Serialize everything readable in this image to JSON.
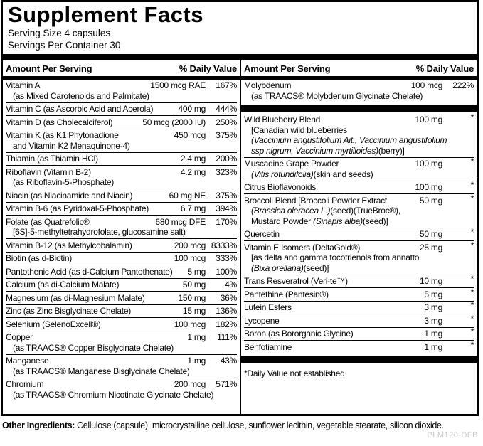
{
  "title": "Supplement Facts",
  "serving": {
    "size": "Serving Size 4 capsules",
    "per_container": "Servings Per Container 30"
  },
  "columns": {
    "amount_header": "Amount Per Serving",
    "dv_header": "% Daily Value"
  },
  "left_rows": [
    {
      "name": "Vitamin A",
      "amount": "1500 mcg RAE",
      "dv": "167%",
      "sub": [
        [
          {
            "t": "(as Mixed Carotenoids and Palmitate)",
            "i": false
          }
        ]
      ]
    },
    {
      "name": "Vitamin C (as Ascorbic Acid and Acerola)",
      "amount": "400 mg",
      "dv": "444%"
    },
    {
      "name": "Vitamin D (as Cholecalciferol)",
      "amount": "50 mcg (2000 IU)",
      "dv": "250%"
    },
    {
      "name": "Vitamin K (as K1 Phytonadione",
      "amount": "450 mcg",
      "dv": "375%",
      "sub": [
        [
          {
            "t": "and Vitamin K2 Menaquinone-4)",
            "i": false
          }
        ]
      ]
    },
    {
      "name": "Thiamin (as Thiamin HCl)",
      "amount": "2.4 mg",
      "dv": "200%"
    },
    {
      "name": "Riboflavin (Vitamin B-2)",
      "amount": "4.2 mg",
      "dv": "323%",
      "sub": [
        [
          {
            "t": "(as Riboflavin-5-Phosphate)",
            "i": false
          }
        ]
      ]
    },
    {
      "name": "Niacin (as Niacinamide and Niacin)",
      "amount": "60 mg NE",
      "dv": "375%"
    },
    {
      "name": "Vitamin B-6 (as Pyridoxal-5-Phosphate)",
      "amount": "6.7 mg",
      "dv": "394%"
    },
    {
      "name": "Folate (as Quatrefolic®",
      "amount": "680 mcg DFE",
      "dv": "170%",
      "sub": [
        [
          {
            "t": "[6S]-5-methyltetrahydrofolate, glucosamine salt)",
            "i": false
          }
        ]
      ]
    },
    {
      "name": "Vitamin B-12 (as Methylcobalamin)",
      "amount": "200 mcg",
      "dv": "8333%"
    },
    {
      "name": "Biotin (as d-Biotin)",
      "amount": "100 mcg",
      "dv": "333%"
    },
    {
      "name": "Pantothenic Acid (as d-Calcium Pantothenate)",
      "amount": "5 mg",
      "dv": "100%"
    },
    {
      "name": "Calcium (as di-Calcium Malate)",
      "amount": "50 mg",
      "dv": "4%"
    },
    {
      "name": "Magnesium (as di-Magnesium Malate)",
      "amount": "150 mg",
      "dv": "36%"
    },
    {
      "name": "Zinc (as Zinc Bisglycinate Chelate)",
      "amount": "15 mg",
      "dv": "136%"
    },
    {
      "name": "Selenium (SelenoExcell®)",
      "amount": "100 mcg",
      "dv": "182%"
    },
    {
      "name": "Copper",
      "amount": "1 mg",
      "dv": "111%",
      "sub": [
        [
          {
            "t": "(as TRAACS® Copper Bisglycinate Chelate)",
            "i": false
          }
        ]
      ]
    },
    {
      "name": "Manganese",
      "amount": "1 mg",
      "dv": "43%",
      "sub": [
        [
          {
            "t": "(as TRAACS® Manganese Bisglycinate Chelate)",
            "i": false
          }
        ]
      ]
    },
    {
      "name": "Chromium",
      "amount": "200 mcg",
      "dv": "571%",
      "sub": [
        [
          {
            "t": "(as TRAACS® Chromium Nicotinate Glycinate Chelate)",
            "i": false
          }
        ]
      ]
    }
  ],
  "right_rows": [
    {
      "name": "Molybdenum",
      "amount": "100 mcg",
      "dv": "222%",
      "sub": [
        [
          {
            "t": "(as TRAACS® Molybdenum Glycinate Chelate)",
            "i": false
          }
        ]
      ]
    },
    {
      "type": "bar"
    },
    {
      "name": "Wild Blueberry Blend",
      "amount": "100 mg",
      "dv": "*",
      "sub": [
        [
          {
            "t": "[Canadian wild blueberries",
            "i": false
          }
        ],
        [
          {
            "t": "(Vaccinium angustifolium Ait., Vaccinium angustifolium",
            "i": true
          }
        ],
        [
          {
            "t": "ssp nigrum, Vaccinium myrtilloides)",
            "i": true
          },
          {
            "t": "(berry)]",
            "i": false
          }
        ]
      ]
    },
    {
      "name": "Muscadine Grape Powder",
      "amount": "100 mg",
      "dv": "*",
      "sub": [
        [
          {
            "t": "(Vitis rotundifolia)",
            "i": true
          },
          {
            "t": "(skin and seeds)",
            "i": false
          }
        ]
      ]
    },
    {
      "name": "Citrus Bioflavonoids",
      "amount": "100 mg",
      "dv": "*"
    },
    {
      "name": "Broccoli Blend [Broccoli Powder Extract",
      "amount": "50 mg",
      "dv": "*",
      "sub": [
        [
          {
            "t": "(Brassica oleracea L.)",
            "i": true
          },
          {
            "t": "(seed)(TrueBroc®),",
            "i": false
          }
        ],
        [
          {
            "t": "Mustard Powder ",
            "i": false
          },
          {
            "t": "(Sinapis alba)",
            "i": true
          },
          {
            "t": "(seed)]",
            "i": false
          }
        ]
      ]
    },
    {
      "name": "Quercetin",
      "amount": "50 mg",
      "dv": "*"
    },
    {
      "name": "Vitamin E Isomers (DeltaGold®)",
      "amount": "25 mg",
      "dv": "*",
      "sub": [
        [
          {
            "t": "[as delta and gamma tocotrienols from annatto",
            "i": false
          }
        ],
        [
          {
            "t": "(Bixa orellana)",
            "i": true
          },
          {
            "t": "(seed)]",
            "i": false
          }
        ]
      ]
    },
    {
      "name": "Trans Resveratrol (Veri-te™)",
      "amount": "10 mg",
      "dv": "*"
    },
    {
      "name": "Pantethine (Pantesin®)",
      "amount": "5 mg",
      "dv": "*"
    },
    {
      "name": "Lutein Esters",
      "amount": "3 mg",
      "dv": "*"
    },
    {
      "name": "Lycopene",
      "amount": "3 mg",
      "dv": "*"
    },
    {
      "name": "Boron (as Bororganic Glycine)",
      "amount": "1 mg",
      "dv": "*"
    },
    {
      "name": "Benfotiamine",
      "amount": "1 mg",
      "dv": "*"
    },
    {
      "type": "bar"
    },
    {
      "type": "note",
      "text": "*Daily Value not established"
    }
  ],
  "other_ingredients": {
    "label": "Other Ingredients:",
    "text": "Cellulose (capsule), microcrystalline cellulose, sunflower lecithin, vegetable stearate, silicon dioxide."
  },
  "product_code": "PLM120-DFB",
  "colors": {
    "text": "#000000",
    "bars": "#000000",
    "code_gray": "#c9c9c9"
  }
}
